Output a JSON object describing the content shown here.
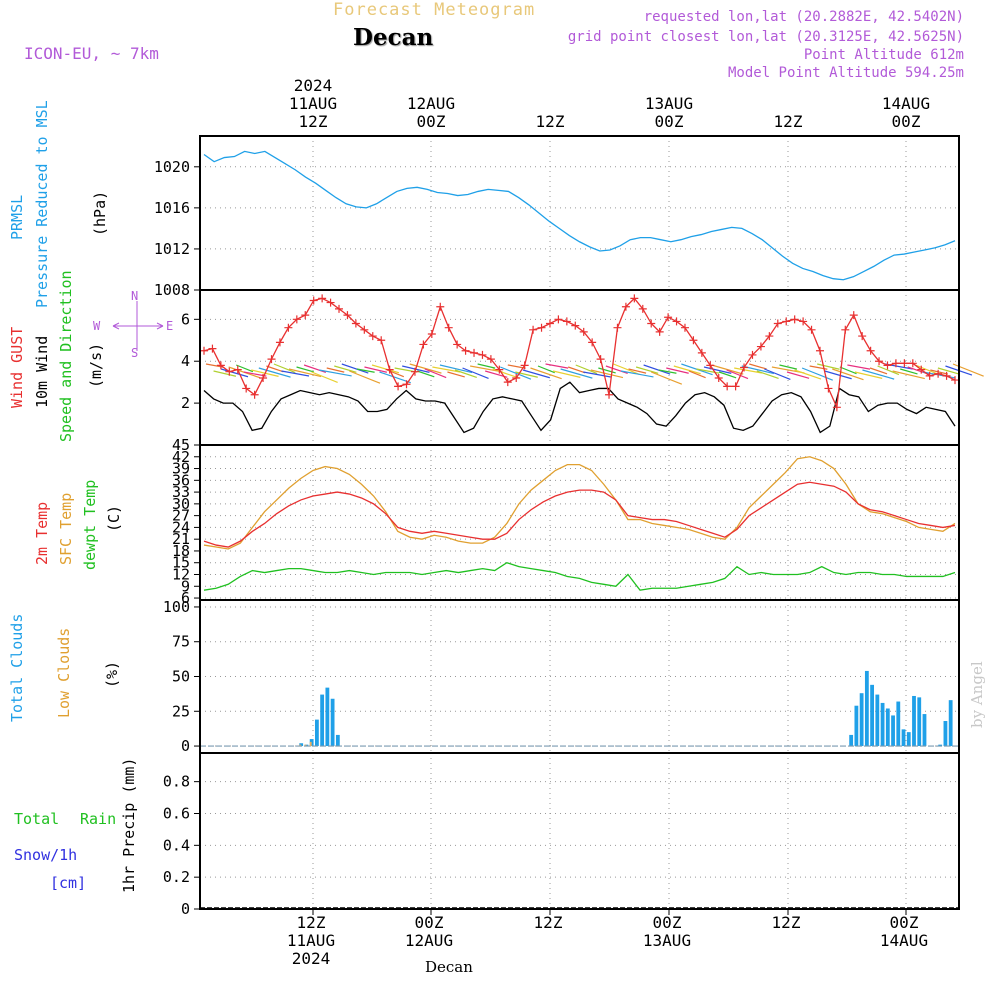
{
  "header": {
    "title": "Forecast Meteogram",
    "location": "Decan",
    "model": "ICON-EU, ~ 7km",
    "requested": "requested lon,lat (20.2882E, 42.5402N)",
    "gridpoint": "grid point closest lon,lat (20.3125E, 42.5625N)",
    "altitude": "Point Altitude 612m",
    "model_altitude": "Model Point Altitude 594.25m"
  },
  "time_axis": {
    "top_year": "2024",
    "ticks": [
      {
        "line1": "11AUG",
        "line2": "12Z"
      },
      {
        "line1": "12AUG",
        "line2": "00Z"
      },
      {
        "line1": "",
        "line2": "12Z"
      },
      {
        "line1": "13AUG",
        "line2": "00Z"
      },
      {
        "line1": "",
        "line2": "12Z"
      },
      {
        "line1": "14AUG",
        "line2": "00Z"
      }
    ],
    "bottom_ticks": [
      {
        "line1": "12Z",
        "line2": "11AUG",
        "line3": "2024"
      },
      {
        "line1": "00Z",
        "line2": "12AUG",
        "line3": ""
      },
      {
        "line1": "12Z",
        "line2": "",
        "line3": ""
      },
      {
        "line1": "00Z",
        "line2": "13AUG",
        "line3": ""
      },
      {
        "line1": "12Z",
        "line2": "",
        "line3": ""
      },
      {
        "line1": "00Z",
        "line2": "14AUG",
        "line3": ""
      }
    ],
    "footer_location": "Decan"
  },
  "panel_labels": {
    "pressure": {
      "l1": "PRMSL",
      "l2": "Pressure Reduced to MSL",
      "unit": "(hPa)"
    },
    "wind": {
      "l1": "Wind GUST",
      "l2": "10m Wind",
      "l3": "Speed and Direction",
      "unit": "(m/s)",
      "compass_w": "W",
      "compass_e": "E",
      "compass_n": "N",
      "compass_s": "S"
    },
    "temp": {
      "l1": "2m Temp",
      "l2": "SFC Temp",
      "l3": "dewpt Temp",
      "unit": "(C)"
    },
    "clouds": {
      "l1": "Total Clouds",
      "l2": "Low Clouds",
      "unit": "(%)"
    },
    "precip": {
      "l1": "Total",
      "l1b": "Rain",
      "l2": "Snow/1h",
      "l3": "[cm]",
      "unit": "1hr Precip (mm)"
    }
  },
  "credit": "by Angel",
  "colors": {
    "pressure": "#1fa0e8",
    "gust": "#e83030",
    "wind": "#000000",
    "t2m": "#e83030",
    "tsfc": "#e0a030",
    "dewpt": "#20c020",
    "total_clouds": "#1fa0e8",
    "low_clouds": "#e8b060",
    "rain": "#20c020",
    "snow": "#3030e0",
    "compass": "#b25ad8"
  },
  "chart_data": [
    {
      "type": "line",
      "name": "pressure",
      "ylim": [
        1008,
        1023
      ],
      "yticks": [
        1008,
        1012,
        1016,
        1020
      ],
      "x_start_hour": 0,
      "x_end_hour": 96,
      "series": [
        {
          "values": [
            1021.2,
            1020.5,
            1020.9,
            1021.0,
            1021.5,
            1021.3,
            1021.5,
            1020.9,
            1020.3,
            1019.7,
            1019.0,
            1018.4,
            1017.7,
            1017.0,
            1016.4,
            1016.1,
            1016.0,
            1016.4,
            1017.0,
            1017.6,
            1017.9,
            1018.0,
            1017.8,
            1017.5,
            1017.4,
            1017.2,
            1017.3,
            1017.6,
            1017.8,
            1017.7,
            1017.6,
            1017.0,
            1016.3,
            1015.5,
            1014.7,
            1014.0,
            1013.3,
            1012.7,
            1012.2,
            1011.8,
            1011.9,
            1012.3,
            1012.9,
            1013.1,
            1013.1,
            1012.9,
            1012.7,
            1012.9,
            1013.2,
            1013.4,
            1013.7,
            1013.9,
            1014.1,
            1014.0,
            1013.5,
            1012.9,
            1012.1,
            1011.3,
            1010.6,
            1010.1,
            1009.8,
            1009.4,
            1009.1,
            1009.0,
            1009.3,
            1009.8,
            1010.3,
            1010.9,
            1011.4,
            1011.5,
            1011.7,
            1011.9,
            1012.1,
            1012.4,
            1012.8
          ]
        }
      ]
    },
    {
      "type": "line",
      "name": "wind",
      "ylim": [
        0,
        7.4
      ],
      "yticks": [
        2,
        4,
        6
      ],
      "series": [
        {
          "name": "Wind GUST",
          "values": [
            4.5,
            4.6,
            3.8,
            3.5,
            3.6,
            2.7,
            2.4,
            3.2,
            4.1,
            4.9,
            5.6,
            6.0,
            6.2,
            6.9,
            7.0,
            6.8,
            6.5,
            6.2,
            5.8,
            5.5,
            5.2,
            5.0,
            3.6,
            2.8,
            2.9,
            3.5,
            4.8,
            5.3,
            6.6,
            5.6,
            4.8,
            4.5,
            4.4,
            4.3,
            4.1,
            3.6,
            3.0,
            3.2,
            3.8,
            5.5,
            5.6,
            5.8,
            6.0,
            5.9,
            5.7,
            5.4,
            4.9,
            4.1,
            2.4,
            5.6,
            6.6,
            7.0,
            6.5,
            5.8,
            5.4,
            6.1,
            5.9,
            5.6,
            5.0,
            4.4,
            3.8,
            3.2,
            2.8,
            2.8,
            3.7,
            4.3,
            4.7,
            5.2,
            5.8,
            5.9,
            6.0,
            5.9,
            5.5,
            4.5,
            2.7,
            1.8,
            5.5,
            6.2,
            5.2,
            4.5,
            4.0,
            3.8,
            3.9,
            3.9,
            3.9,
            3.6,
            3.3,
            3.4,
            3.3,
            3.1
          ]
        },
        {
          "name": "10m Wind",
          "values": [
            2.6,
            2.2,
            2.0,
            2.0,
            1.6,
            0.7,
            0.8,
            1.6,
            2.2,
            2.4,
            2.6,
            2.5,
            2.4,
            2.5,
            2.4,
            2.3,
            2.1,
            1.6,
            1.6,
            1.7,
            2.2,
            2.6,
            2.2,
            2.1,
            2.1,
            2.0,
            1.3,
            0.6,
            0.8,
            1.6,
            2.2,
            2.3,
            2.2,
            2.1,
            1.4,
            0.7,
            1.2,
            2.7,
            3.0,
            2.5,
            2.6,
            2.7,
            2.7,
            2.2,
            2.0,
            1.8,
            1.5,
            1.0,
            0.9,
            1.4,
            2.0,
            2.4,
            2.5,
            2.3,
            1.9,
            0.8,
            0.7,
            0.9,
            1.5,
            2.1,
            2.4,
            2.5,
            2.3,
            1.6,
            0.6,
            0.9,
            2.7,
            2.4,
            2.3,
            1.6,
            1.9,
            2.0,
            2.0,
            1.7,
            1.5,
            1.8,
            1.7,
            1.6,
            0.9
          ]
        }
      ]
    },
    {
      "type": "line",
      "name": "temperature",
      "ylim": [
        5.5,
        45
      ],
      "yticks": [
        6,
        9,
        12,
        15,
        18,
        21,
        24,
        27,
        30,
        33,
        36,
        39,
        42,
        45
      ],
      "series": [
        {
          "name": "2m Temp",
          "values": [
            20.5,
            19.5,
            19.0,
            20.5,
            23.0,
            25.0,
            27.5,
            29.5,
            31.0,
            32.0,
            32.5,
            33.0,
            32.5,
            31.5,
            30.0,
            27.5,
            24.0,
            23.0,
            22.5,
            23.0,
            22.5,
            22.0,
            21.5,
            21.0,
            21.0,
            22.5,
            26.0,
            28.5,
            30.5,
            32.0,
            33.0,
            33.5,
            33.5,
            33.0,
            31.0,
            27.0,
            26.5,
            26.0,
            26.0,
            25.5,
            24.5,
            23.5,
            22.5,
            21.5,
            23.5,
            27.0,
            29.0,
            31.0,
            33.0,
            35.0,
            35.5,
            35.0,
            34.5,
            33.0,
            30.0,
            28.5,
            28.0,
            27.0,
            26.0,
            25.0,
            24.5,
            24.0,
            24.5
          ]
        },
        {
          "name": "SFC Temp",
          "values": [
            19.5,
            19.0,
            18.5,
            20.0,
            24.0,
            28.0,
            31.0,
            34.0,
            36.5,
            38.5,
            39.5,
            39.0,
            37.5,
            35.0,
            32.0,
            28.0,
            23.0,
            21.5,
            21.0,
            22.0,
            21.5,
            20.5,
            20.0,
            20.0,
            21.5,
            25.0,
            30.0,
            33.5,
            36.0,
            38.5,
            40.0,
            40.0,
            38.5,
            35.0,
            31.0,
            26.0,
            26.0,
            25.0,
            24.5,
            24.0,
            23.5,
            22.5,
            21.5,
            21.0,
            24.0,
            29.0,
            32.0,
            35.0,
            38.0,
            41.5,
            42.0,
            41.0,
            39.0,
            35.0,
            30.0,
            28.0,
            27.5,
            26.5,
            25.5,
            24.0,
            23.5,
            23.0,
            25.0
          ]
        },
        {
          "name": "dewpt Temp",
          "values": [
            8.0,
            8.5,
            9.5,
            11.5,
            13.0,
            12.5,
            13.0,
            13.5,
            13.5,
            13.0,
            12.5,
            12.5,
            13.0,
            12.5,
            12.0,
            12.5,
            12.5,
            12.5,
            12.0,
            12.5,
            13.0,
            12.5,
            13.0,
            13.5,
            13.0,
            15.0,
            14.0,
            13.5,
            13.0,
            12.5,
            11.5,
            11.0,
            10.0,
            9.5,
            9.0,
            12.0,
            8.0,
            8.5,
            8.5,
            8.5,
            9.0,
            9.5,
            10.0,
            11.0,
            14.0,
            12.0,
            12.5,
            12.0,
            12.0,
            12.0,
            12.5,
            14.0,
            12.5,
            12.0,
            12.5,
            12.5,
            12.0,
            12.0,
            11.5,
            11.5,
            11.5,
            11.5,
            12.5
          ]
        }
      ]
    },
    {
      "type": "bar",
      "name": "clouds",
      "ylim": [
        -5,
        105
      ],
      "yticks": [
        0,
        25,
        50,
        75,
        100
      ],
      "series": [
        {
          "name": "Total Clouds",
          "values": [
            0,
            0,
            0,
            0,
            0,
            0,
            0,
            0,
            0,
            0,
            0,
            0,
            0,
            0,
            0,
            0,
            0,
            0,
            2,
            1,
            5,
            19,
            37,
            42,
            34,
            8,
            0,
            0,
            0,
            0,
            0,
            0,
            0,
            0,
            0,
            0,
            0,
            0,
            0,
            0,
            0,
            0,
            0,
            0,
            0,
            0,
            0,
            0,
            0,
            0,
            0,
            0,
            0,
            0,
            0,
            0,
            0,
            0,
            0,
            0,
            0,
            0,
            0,
            0,
            0,
            0,
            0,
            0,
            0,
            0,
            0,
            0,
            0,
            0,
            0,
            0,
            0,
            0,
            0,
            0,
            0,
            0,
            0,
            0,
            0,
            0,
            0,
            0,
            0,
            0,
            0,
            0,
            0,
            0,
            0,
            0,
            0,
            0,
            0,
            0,
            0,
            0,
            0,
            0,
            0,
            0,
            0,
            0,
            0,
            0,
            0,
            0,
            0,
            0,
            0,
            0,
            0,
            0,
            0,
            0,
            0,
            0,
            0,
            8,
            29,
            38,
            54,
            44,
            37,
            31,
            27,
            22,
            32,
            12,
            10,
            36,
            35,
            23,
            0,
            0,
            1,
            18,
            33
          ]
        },
        {
          "name": "Low Clouds",
          "values": [
            0,
            0,
            0,
            0,
            0,
            0,
            0,
            0,
            0,
            0,
            0,
            0,
            0,
            0,
            0,
            0,
            0,
            0,
            1,
            1,
            3,
            0,
            0,
            0,
            0,
            0,
            0,
            0,
            0,
            0,
            0,
            0,
            0,
            0,
            0,
            0,
            0,
            0,
            0,
            0,
            0,
            0,
            0,
            0,
            0,
            0,
            0,
            0,
            0,
            0,
            0,
            0,
            0,
            0,
            0,
            0,
            0,
            0,
            0,
            0,
            0,
            0,
            0,
            0,
            0,
            0,
            0,
            0,
            0,
            0,
            0,
            0,
            0,
            0,
            0,
            0,
            0,
            0,
            0,
            0,
            0,
            0,
            0,
            0,
            0,
            0,
            0,
            0,
            0,
            0,
            0,
            0,
            0,
            0,
            0,
            0,
            0,
            0,
            0,
            0,
            0,
            0,
            0,
            0,
            0,
            0,
            0,
            0,
            0,
            0,
            0,
            0,
            0,
            0,
            0,
            0,
            0,
            0,
            0,
            0,
            0,
            0,
            0,
            0,
            0,
            0,
            0,
            0,
            0,
            0,
            0,
            0,
            0,
            0,
            0,
            0,
            0,
            0,
            0,
            0,
            0,
            0,
            0
          ]
        }
      ]
    },
    {
      "type": "bar",
      "name": "precip",
      "ylim": [
        0,
        0.98
      ],
      "yticks": [
        0,
        0.2,
        0.4,
        0.6,
        0.8
      ],
      "series": [
        {
          "name": "Total Rain",
          "values": [
            0
          ]
        },
        {
          "name": "Snow/1h",
          "values": [
            0
          ]
        }
      ]
    }
  ]
}
